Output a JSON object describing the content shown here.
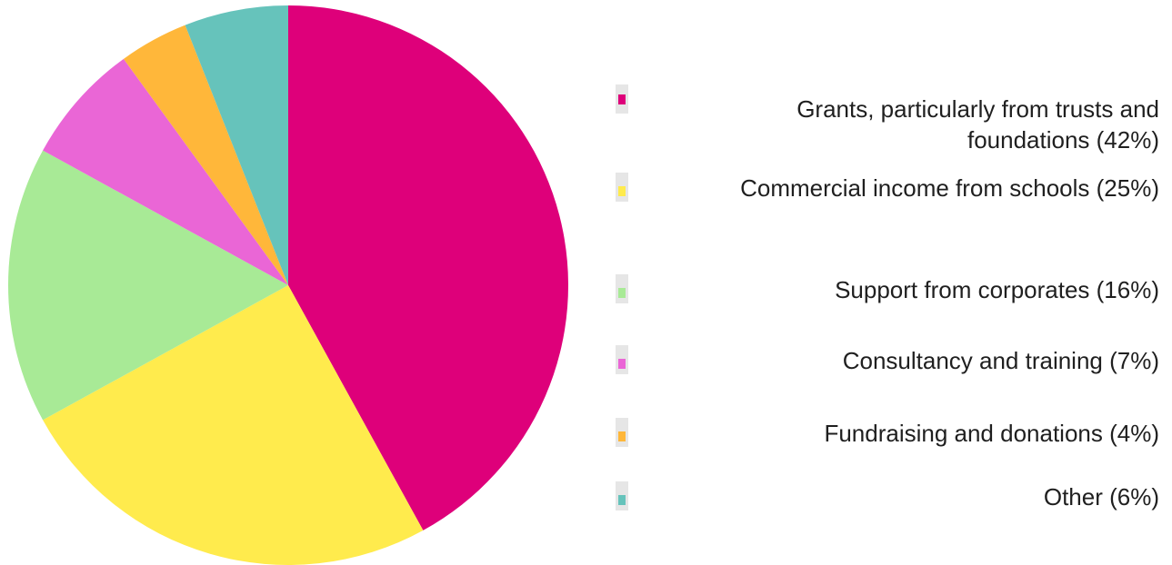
{
  "chart_data": {
    "type": "pie",
    "title": "",
    "slices": [
      {
        "label": "Grants, particularly from trusts and foundations (42%)",
        "value": 42,
        "color": "#de007a"
      },
      {
        "label": "Commercial income from schools (25%)",
        "value": 25,
        "color": "#ffeb4d"
      },
      {
        "label": "Support from corporates (16%)",
        "value": 16,
        "color": "#a8ea96"
      },
      {
        "label": "Consultancy and training (7%)",
        "value": 7,
        "color": "#ea66d6"
      },
      {
        "label": "Fundraising and donations (4%)",
        "value": 4,
        "color": "#ffb73a"
      },
      {
        "label": "Other (6%)",
        "value": 6,
        "color": "#66c3bb"
      }
    ],
    "start_angle_deg": 0,
    "direction": "clockwise",
    "legend_position": "right",
    "grid": false
  }
}
